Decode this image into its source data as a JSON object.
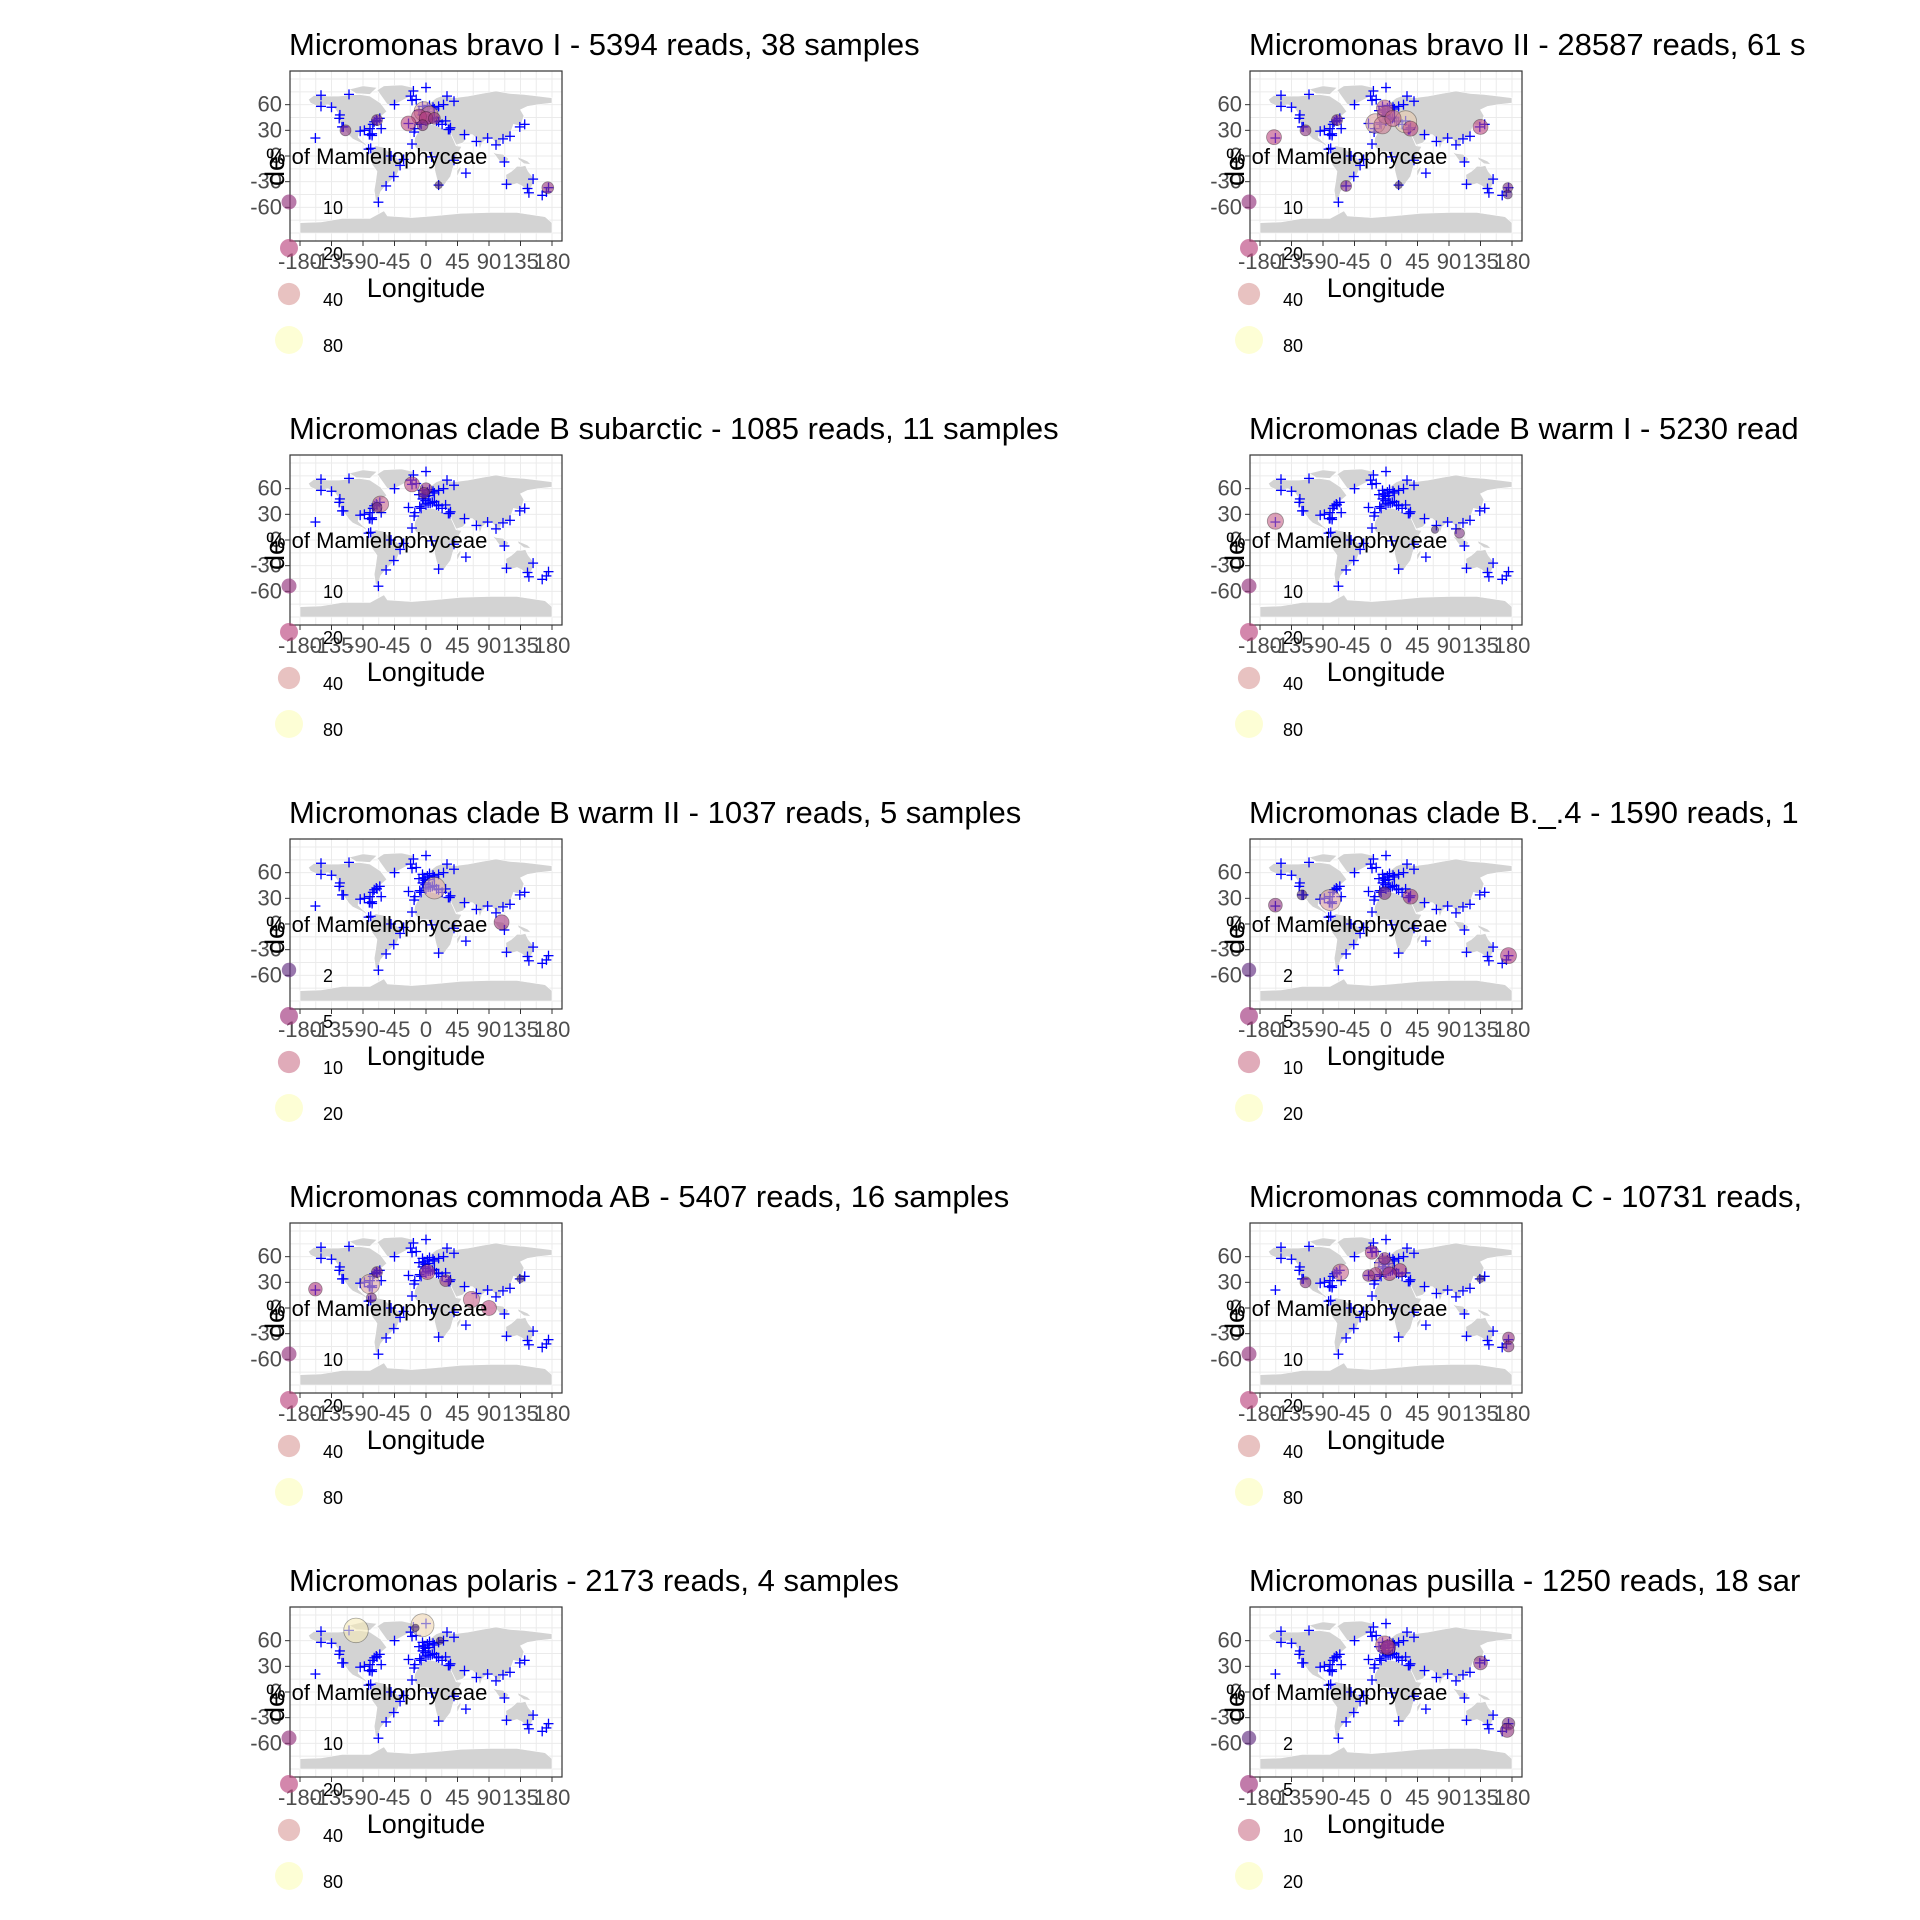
{
  "figure": {
    "xlabel": "Longitude",
    "ylabel_fragment": "de",
    "legend_title": "% of Mamiellophyceae",
    "x_ticks": [
      "-180",
      "-135",
      "-90",
      "-45",
      "0",
      "45",
      "90",
      "135",
      "180"
    ],
    "y_ticks": [
      "-60",
      "-30",
      "0",
      "30",
      "60"
    ],
    "colors": {
      "panel_border": "#333333",
      "grid": "#ebebeb",
      "land": "#d3d3d3",
      "sample_marker": "#0000ff",
      "legend_scale": [
        "#1a1a2e",
        "#5a2d82",
        "#b5367a",
        "#fcfdbf"
      ]
    },
    "marker_shape": "plus"
  },
  "chart_data": [
    {
      "type": "scatter",
      "title": "Micromonas bravo I - 5394 reads, 38 samples",
      "xlabel": "Longitude",
      "xlim": [
        -180,
        180
      ],
      "ylim": [
        -90,
        90
      ],
      "legend_values": [
        "10",
        "20",
        "40",
        "80"
      ],
      "points": [
        {
          "lon": -3,
          "lat": 52,
          "pct": 40
        },
        {
          "lon": 5,
          "lat": 48,
          "pct": 30
        },
        {
          "lon": -10,
          "lat": 46,
          "pct": 20
        },
        {
          "lon": 0,
          "lat": 44,
          "pct": 15
        },
        {
          "lon": -25,
          "lat": 38,
          "pct": 20
        },
        {
          "lon": 12,
          "lat": 44,
          "pct": 10
        },
        {
          "lon": -70,
          "lat": 42,
          "pct": 8
        },
        {
          "lon": -115,
          "lat": 30,
          "pct": 8
        },
        {
          "lon": -5,
          "lat": 36,
          "pct": 8
        },
        {
          "lon": 18,
          "lat": -34,
          "pct": 2
        },
        {
          "lon": 174,
          "lat": -37,
          "pct": 10
        }
      ]
    },
    {
      "type": "scatter",
      "title": "Micromonas bravo II - 28587 reads, 61 s",
      "xlabel": "Longitude",
      "xlim": [
        -180,
        180
      ],
      "ylim": [
        -90,
        90
      ],
      "legend_values": [
        "10",
        "20",
        "40",
        "80"
      ],
      "points": [
        {
          "lon": 28,
          "lat": 40,
          "pct": 55
        },
        {
          "lon": -15,
          "lat": 38,
          "pct": 40
        },
        {
          "lon": 0,
          "lat": 48,
          "pct": 30
        },
        {
          "lon": -5,
          "lat": 36,
          "pct": 30
        },
        {
          "lon": -2,
          "lat": 56,
          "pct": 25
        },
        {
          "lon": 10,
          "lat": 44,
          "pct": 25
        },
        {
          "lon": 35,
          "lat": 32,
          "pct": 20
        },
        {
          "lon": 135,
          "lat": 34,
          "pct": 20
        },
        {
          "lon": -160,
          "lat": 22,
          "pct": 20
        },
        {
          "lon": -115,
          "lat": 30,
          "pct": 8
        },
        {
          "lon": -70,
          "lat": 42,
          "pct": 8
        },
        {
          "lon": -57,
          "lat": -35,
          "pct": 8
        },
        {
          "lon": 18,
          "lat": -34,
          "pct": 2
        },
        {
          "lon": 174,
          "lat": -37,
          "pct": 6
        },
        {
          "lon": 174,
          "lat": -45,
          "pct": 4
        }
      ]
    },
    {
      "type": "scatter",
      "title": "Micromonas clade B  subarctic - 1085 reads, 11 samples",
      "xlabel": "Longitude",
      "xlim": [
        -180,
        180
      ],
      "ylim": [
        -90,
        90
      ],
      "legend_values": [
        "10",
        "20",
        "40",
        "80"
      ],
      "points": [
        {
          "lon": -20,
          "lat": 65,
          "pct": 20
        },
        {
          "lon": -65,
          "lat": 42,
          "pct": 25
        },
        {
          "lon": 0,
          "lat": 60,
          "pct": 10
        },
        {
          "lon": -3,
          "lat": 55,
          "pct": 8
        },
        {
          "lon": -70,
          "lat": 38,
          "pct": 6
        }
      ]
    },
    {
      "type": "scatter",
      "title": "Micromonas clade B warm I - 5230 read",
      "xlabel": "Longitude",
      "xlim": [
        -180,
        180
      ],
      "ylim": [
        -90,
        90
      ],
      "legend_values": [
        "10",
        "20",
        "40",
        "80"
      ],
      "points": [
        {
          "lon": -158,
          "lat": 22,
          "pct": 25
        },
        {
          "lon": 105,
          "lat": 8,
          "pct": 6
        },
        {
          "lon": 70,
          "lat": 12,
          "pct": 2
        }
      ]
    },
    {
      "type": "scatter",
      "title": "Micromonas clade B warm II - 1037 reads, 5 samples",
      "xlabel": "Longitude",
      "xlim": [
        -180,
        180
      ],
      "ylim": [
        -90,
        90
      ],
      "legend_values": [
        "2",
        "5",
        "10",
        "20"
      ],
      "points": [
        {
          "lon": 12,
          "lat": 42,
          "pct": 13
        },
        {
          "lon": 108,
          "lat": 2,
          "pct": 5
        }
      ]
    },
    {
      "type": "scatter",
      "title": "Micromonas clade B._.4 - 1590 reads, 1",
      "xlabel": "Longitude",
      "xlim": [
        -180,
        180
      ],
      "ylim": [
        -90,
        90
      ],
      "legend_values": [
        "2",
        "5",
        "10",
        "20"
      ],
      "points": [
        {
          "lon": -80,
          "lat": 28,
          "pct": 12
        },
        {
          "lon": -158,
          "lat": 22,
          "pct": 4
        },
        {
          "lon": 35,
          "lat": 32,
          "pct": 5
        },
        {
          "lon": 175,
          "lat": -37,
          "pct": 6
        },
        {
          "lon": -2,
          "lat": 36,
          "pct": 3
        },
        {
          "lon": -120,
          "lat": 34,
          "pct": 1.5
        }
      ]
    },
    {
      "type": "scatter",
      "title": "Micromonas commoda AB - 5407 reads, 16 samples",
      "xlabel": "Longitude",
      "xlim": [
        -180,
        180
      ],
      "ylim": [
        -90,
        90
      ],
      "legend_values": [
        "10",
        "20",
        "40",
        "80"
      ],
      "points": [
        {
          "lon": -80,
          "lat": 28,
          "pct": 40
        },
        {
          "lon": 65,
          "lat": 10,
          "pct": 25
        },
        {
          "lon": 90,
          "lat": 0,
          "pct": 20
        },
        {
          "lon": 2,
          "lat": 42,
          "pct": 20
        },
        {
          "lon": -158,
          "lat": 22,
          "pct": 15
        },
        {
          "lon": 28,
          "lat": 32,
          "pct": 10
        },
        {
          "lon": -70,
          "lat": 42,
          "pct": 8
        },
        {
          "lon": -78,
          "lat": 12,
          "pct": 6
        },
        {
          "lon": 135,
          "lat": 34,
          "pct": 2
        }
      ]
    },
    {
      "type": "scatter",
      "title": "Micromonas commoda C - 10731 reads,",
      "xlabel": "Longitude",
      "xlim": [
        -180,
        180
      ],
      "ylim": [
        -90,
        90
      ],
      "legend_values": [
        "10",
        "20",
        "40",
        "80"
      ],
      "points": [
        {
          "lon": -3,
          "lat": 50,
          "pct": 35
        },
        {
          "lon": -65,
          "lat": 42,
          "pct": 25
        },
        {
          "lon": -20,
          "lat": 65,
          "pct": 15
        },
        {
          "lon": 20,
          "lat": 44,
          "pct": 15
        },
        {
          "lon": 5,
          "lat": 40,
          "pct": 15
        },
        {
          "lon": -15,
          "lat": 40,
          "pct": 12
        },
        {
          "lon": -25,
          "lat": 38,
          "pct": 10
        },
        {
          "lon": -115,
          "lat": 30,
          "pct": 8
        },
        {
          "lon": 175,
          "lat": -35,
          "pct": 10
        },
        {
          "lon": 175,
          "lat": -45,
          "pct": 8
        },
        {
          "lon": -2,
          "lat": 58,
          "pct": 10
        },
        {
          "lon": 135,
          "lat": 34,
          "pct": 2
        }
      ]
    },
    {
      "type": "scatter",
      "title": "Micromonas polaris - 2173 reads, 4 samples",
      "xlabel": "Longitude",
      "xlim": [
        -180,
        180
      ],
      "ylim": [
        -90,
        90
      ],
      "legend_values": [
        "10",
        "20",
        "40",
        "80"
      ],
      "points": [
        {
          "lon": -100,
          "lat": 72,
          "pct": 70
        },
        {
          "lon": -5,
          "lat": 78,
          "pct": 60
        },
        {
          "lon": -15,
          "lat": 75,
          "pct": 2
        },
        {
          "lon": 20,
          "lat": 60,
          "pct": 2
        }
      ]
    },
    {
      "type": "scatter",
      "title": "Micromonas pusilla - 1250 reads, 18 sar",
      "xlabel": "Longitude",
      "xlim": [
        -180,
        180
      ],
      "ylim": [
        -90,
        90
      ],
      "legend_values": [
        "2",
        "5",
        "10",
        "20"
      ],
      "points": [
        {
          "lon": -2,
          "lat": 55,
          "pct": 8
        },
        {
          "lon": 3,
          "lat": 52,
          "pct": 5
        },
        {
          "lon": 135,
          "lat": 34,
          "pct": 4
        },
        {
          "lon": 175,
          "lat": -37,
          "pct": 3
        },
        {
          "lon": 173,
          "lat": -45,
          "pct": 4
        }
      ]
    }
  ],
  "sample_sites": [
    [
      -158,
      21
    ],
    [
      -123,
      48
    ],
    [
      -118,
      34
    ],
    [
      -120,
      34
    ],
    [
      -124,
      44
    ],
    [
      -94,
      29
    ],
    [
      -88,
      30
    ],
    [
      -80,
      25
    ],
    [
      -80,
      32
    ],
    [
      -76,
      37
    ],
    [
      -74,
      40
    ],
    [
      -71,
      42
    ],
    [
      -70,
      41
    ],
    [
      -66,
      44
    ],
    [
      -64,
      32
    ],
    [
      -81,
      25
    ],
    [
      -77,
      24
    ],
    [
      -79,
      9
    ],
    [
      -82,
      8
    ],
    [
      -77,
      26
    ],
    [
      -110,
      72
    ],
    [
      -150,
      71
    ],
    [
      -150,
      58
    ],
    [
      -135,
      57
    ],
    [
      -45,
      60
    ],
    [
      -20,
      65
    ],
    [
      -22,
      70
    ],
    [
      -14,
      66
    ],
    [
      -18,
      76
    ],
    [
      -5,
      58
    ],
    [
      -3,
      54
    ],
    [
      -1,
      51
    ],
    [
      4,
      52
    ],
    [
      -10,
      53
    ],
    [
      2,
      56
    ],
    [
      5,
      59
    ],
    [
      10,
      57
    ],
    [
      12,
      55
    ],
    [
      18,
      58
    ],
    [
      25,
      60
    ],
    [
      -5,
      48
    ],
    [
      -4,
      48
    ],
    [
      -1,
      46
    ],
    [
      -9,
      39
    ],
    [
      -7,
      37
    ],
    [
      0,
      41
    ],
    [
      3,
      43
    ],
    [
      6,
      43
    ],
    [
      9,
      44
    ],
    [
      12,
      45
    ],
    [
      15,
      41
    ],
    [
      18,
      40
    ],
    [
      23,
      37
    ],
    [
      28,
      41
    ],
    [
      35,
      33
    ],
    [
      34,
      31
    ],
    [
      32,
      31
    ],
    [
      40,
      64
    ],
    [
      30,
      70
    ],
    [
      0,
      80
    ],
    [
      -25,
      38
    ],
    [
      -17,
      28
    ],
    [
      -16,
      32
    ],
    [
      -37,
      -11
    ],
    [
      -46,
      -24
    ],
    [
      -57,
      -35
    ],
    [
      -68,
      -54
    ],
    [
      -50,
      0
    ],
    [
      -32,
      -4
    ],
    [
      -20,
      14
    ],
    [
      8,
      -1
    ],
    [
      18,
      -34
    ],
    [
      57,
      -20
    ],
    [
      40,
      -5
    ],
    [
      55,
      25
    ],
    [
      72,
      17
    ],
    [
      88,
      21
    ],
    [
      100,
      13
    ],
    [
      112,
      -7
    ],
    [
      115,
      -33
    ],
    [
      134,
      34
    ],
    [
      141,
      37
    ],
    [
      153,
      -27
    ],
    [
      145,
      -38
    ],
    [
      147,
      -43
    ],
    [
      175,
      -37
    ],
    [
      172,
      -42
    ],
    [
      166,
      -46
    ],
    [
      110,
      20
    ],
    [
      120,
      23
    ]
  ]
}
